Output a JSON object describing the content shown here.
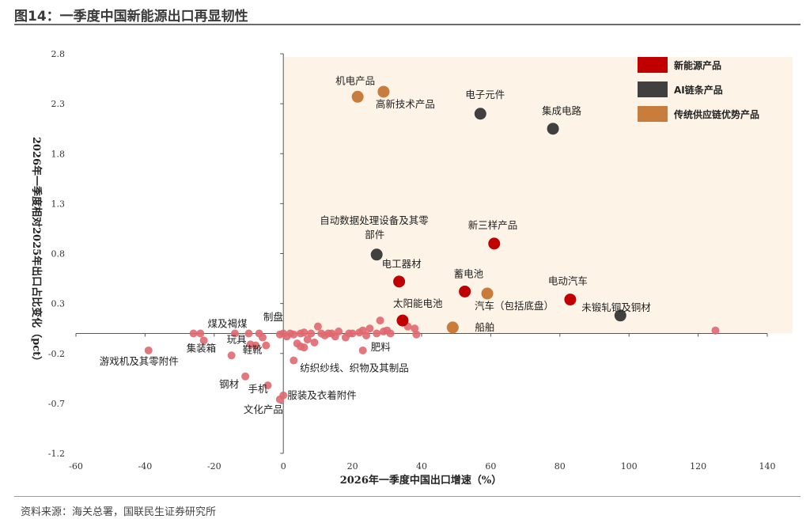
{
  "header": {
    "title": "图14：一季度中国新能源出口再显韧性"
  },
  "footer": {
    "source": "资料来源：海关总署，国联民生证券研究所"
  },
  "chart_data": {
    "type": "scatter",
    "xlabel": "2026年一季度中国出口增速（%）",
    "ylabel": "2026年一季度相对2025年出口占比变化（pct）",
    "xlim": [
      -60,
      140
    ],
    "ylim": [
      -1.2,
      2.8
    ],
    "xticks": [
      "-60",
      "-40",
      "-20",
      "0",
      "20",
      "40",
      "60",
      "80",
      "100",
      "120",
      "140"
    ],
    "yticks": [
      "2.8",
      "2.3",
      "1.8",
      "1.3",
      "0.8",
      "0.3",
      "-0.2",
      "-0.7",
      "-1.2"
    ],
    "grid": false,
    "legend_position": "top-right",
    "colors": {
      "new_energy": "#c00000",
      "ai": "#404040",
      "traditional": "#c87d3c",
      "other": "#e06870",
      "highlight_bg": "#fdf3e7"
    },
    "series": [
      {
        "name": "新能源产品",
        "key": "new_energy",
        "color": "#c00000",
        "points": [
          {
            "x": 61,
            "y": 0.9,
            "label": "新三样产品"
          },
          {
            "x": 33.5,
            "y": 0.52,
            "label": "电工器材"
          },
          {
            "x": 52.5,
            "y": 0.42,
            "label": "蓄电池"
          },
          {
            "x": 83,
            "y": 0.34,
            "label": "电动汽车"
          },
          {
            "x": 34.5,
            "y": 0.13,
            "label": "太阳能电池"
          }
        ]
      },
      {
        "name": "AI链条产品",
        "key": "ai",
        "color": "#404040",
        "points": [
          {
            "x": 57,
            "y": 2.2,
            "label": "电子元件"
          },
          {
            "x": 78,
            "y": 2.05,
            "label": "集成电路"
          },
          {
            "x": 27,
            "y": 0.79,
            "label": "自动数据处理设备及其零部件"
          },
          {
            "x": 97.5,
            "y": 0.18,
            "label": "未锻轧铜及铜材"
          }
        ]
      },
      {
        "name": "传统供应链优势产品",
        "key": "traditional",
        "color": "#c87d3c",
        "points": [
          {
            "x": 21.5,
            "y": 2.37,
            "label": "机电产品"
          },
          {
            "x": 29,
            "y": 2.42,
            "label": "高新技术产品"
          },
          {
            "x": 59,
            "y": 0.4,
            "label": "汽车（包括底盘）"
          },
          {
            "x": 49,
            "y": 0.06,
            "label": "船舶"
          }
        ]
      },
      {
        "name": "其他产品",
        "key": "other",
        "color": "#e06870",
        "points": [
          {
            "x": -39,
            "y": -0.17,
            "label": "游戏机及其零附件"
          },
          {
            "x": -15,
            "y": -0.22,
            "label": "集装箱"
          },
          {
            "x": -11,
            "y": -0.43,
            "label": "钢材"
          },
          {
            "x": -9.5,
            "y": -0.11,
            "label": "鞋靴"
          },
          {
            "x": -4.5,
            "y": -0.52,
            "label": "手机"
          },
          {
            "x": -1,
            "y": -0.66,
            "label": "文化产品"
          },
          {
            "x": 0,
            "y": -0.62,
            "label": "服装及衣着附件"
          },
          {
            "x": 3,
            "y": -0.27,
            "label": "纺织纱线、织物及其制品"
          },
          {
            "x": 23,
            "y": -0.17,
            "label": "肥料"
          },
          {
            "x": -10,
            "y": 0.0,
            "label": "煤及褐煤"
          },
          {
            "x": -7,
            "y": 0.0,
            "label": "玩具"
          },
          {
            "x": -6,
            "y": -0.04,
            "label": ""
          },
          {
            "x": -1,
            "y": -0.01,
            "label": "制盘"
          },
          {
            "x": 125,
            "y": 0.03,
            "label": ""
          },
          {
            "x": -26,
            "y": 0.0,
            "label": ""
          },
          {
            "x": -24,
            "y": 0.0,
            "label": ""
          },
          {
            "x": -23,
            "y": -0.07,
            "label": ""
          },
          {
            "x": -14,
            "y": 0.0,
            "label": ""
          },
          {
            "x": -8,
            "y": -0.12,
            "label": ""
          },
          {
            "x": -5,
            "y": -0.12,
            "label": ""
          },
          {
            "x": 0,
            "y": 0.0,
            "label": ""
          },
          {
            "x": 1,
            "y": -0.03,
            "label": ""
          },
          {
            "x": 2,
            "y": 0.0,
            "label": ""
          },
          {
            "x": 3,
            "y": -0.01,
            "label": ""
          },
          {
            "x": 4,
            "y": -0.1,
            "label": ""
          },
          {
            "x": 5,
            "y": 0.0,
            "label": ""
          },
          {
            "x": 5,
            "y": -0.13,
            "label": ""
          },
          {
            "x": 6,
            "y": 0.01,
            "label": ""
          },
          {
            "x": 6,
            "y": -0.14,
            "label": ""
          },
          {
            "x": 7,
            "y": -0.06,
            "label": ""
          },
          {
            "x": 8,
            "y": 0.0,
            "label": ""
          },
          {
            "x": 9,
            "y": -0.09,
            "label": ""
          },
          {
            "x": 10,
            "y": 0.07,
            "label": ""
          },
          {
            "x": 11,
            "y": 0.0,
            "label": ""
          },
          {
            "x": 12,
            "y": -0.02,
            "label": ""
          },
          {
            "x": 13,
            "y": 0.0,
            "label": ""
          },
          {
            "x": 14,
            "y": 0.0,
            "label": ""
          },
          {
            "x": 15,
            "y": -0.03,
            "label": ""
          },
          {
            "x": 16,
            "y": 0.02,
            "label": ""
          },
          {
            "x": 18,
            "y": -0.04,
            "label": ""
          },
          {
            "x": 19,
            "y": 0.0,
            "label": ""
          },
          {
            "x": 20,
            "y": 0.0,
            "label": ""
          },
          {
            "x": 22,
            "y": 0.01,
            "label": ""
          },
          {
            "x": 23,
            "y": 0.03,
            "label": ""
          },
          {
            "x": 24,
            "y": -0.02,
            "label": ""
          },
          {
            "x": 25,
            "y": 0.05,
            "label": ""
          },
          {
            "x": 27,
            "y": 0.0,
            "label": ""
          },
          {
            "x": 28,
            "y": 0.13,
            "label": ""
          },
          {
            "x": 29,
            "y": 0.02,
            "label": ""
          },
          {
            "x": 30,
            "y": 0.03,
            "label": ""
          },
          {
            "x": 31,
            "y": 0.0,
            "label": ""
          },
          {
            "x": 36,
            "y": 0.07,
            "label": ""
          },
          {
            "x": 38,
            "y": 0.05,
            "label": ""
          },
          {
            "x": 38.5,
            "y": -0.01,
            "label": ""
          }
        ]
      }
    ]
  }
}
